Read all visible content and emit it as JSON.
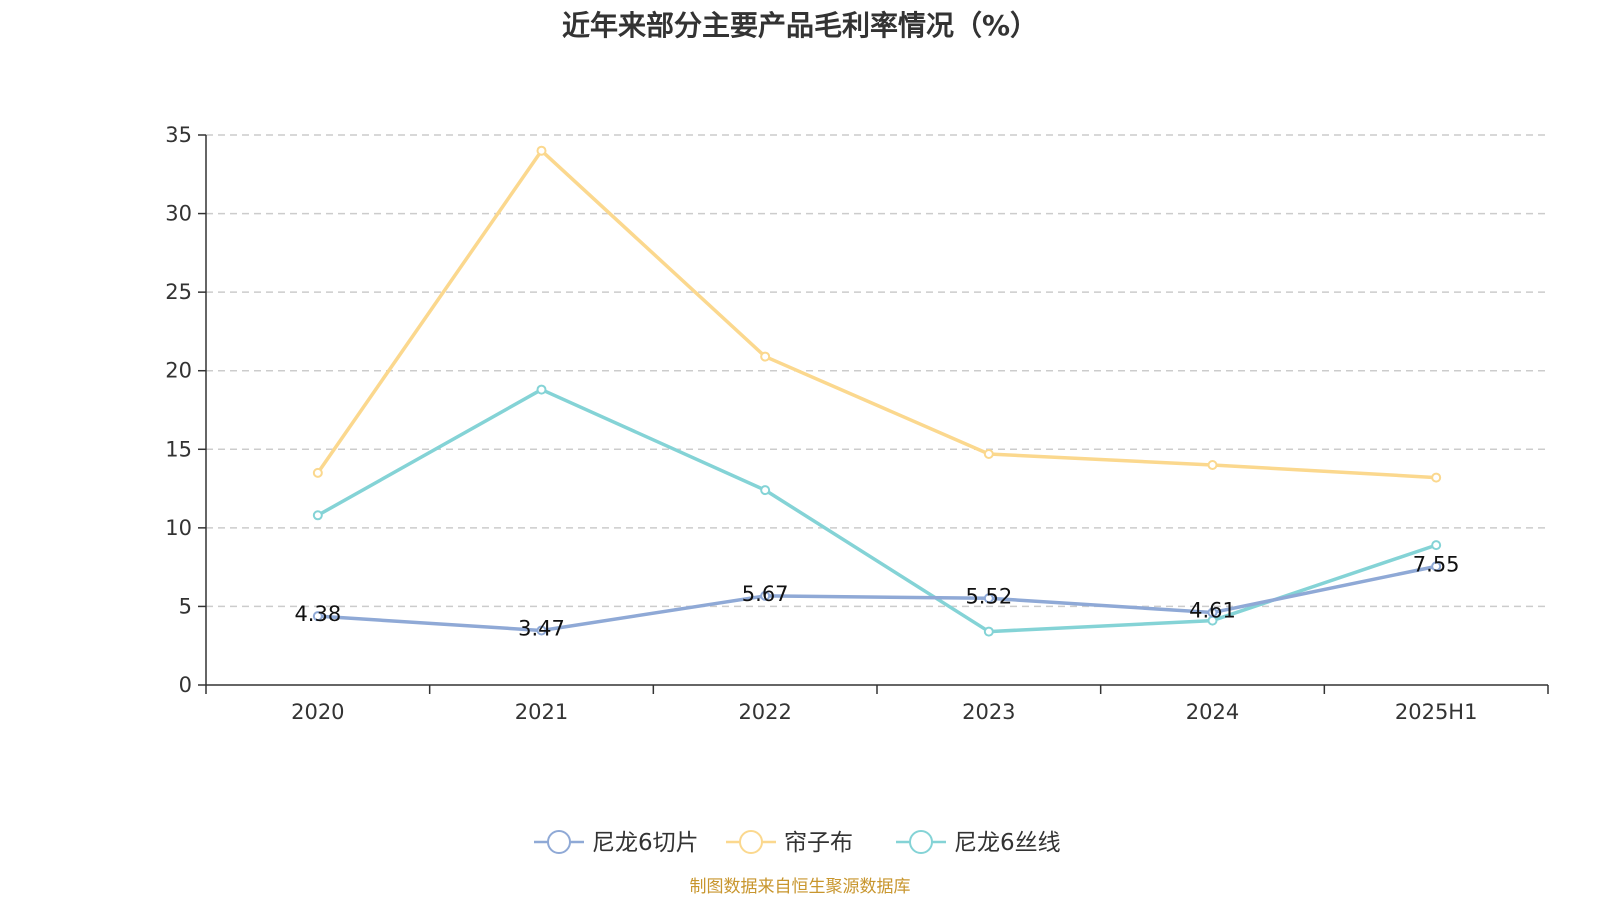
{
  "chart_data": {
    "type": "line",
    "title": "近年来部分主要产品毛利率情况（%）",
    "categories": [
      "2020",
      "2021",
      "2022",
      "2023",
      "2024",
      "2025H1"
    ],
    "ylim": [
      0,
      35
    ],
    "yticks": [
      0,
      5,
      10,
      15,
      20,
      25,
      30,
      35
    ],
    "grid": true,
    "legend_position": "bottom",
    "series": [
      {
        "name": "尼龙6切片",
        "color": "#8fa9d6",
        "values": [
          4.38,
          3.47,
          5.67,
          5.52,
          4.61,
          7.55
        ],
        "labels": [
          "4.38",
          "3.47",
          "5.67",
          "5.52",
          "4.61",
          "7.55"
        ]
      },
      {
        "name": "帘子布",
        "color": "#fbd88e",
        "values": [
          13.5,
          34.0,
          20.9,
          14.7,
          14.0,
          13.2
        ]
      },
      {
        "name": "尼龙6丝线",
        "color": "#84d3d6",
        "values": [
          10.8,
          18.8,
          12.4,
          3.4,
          4.1,
          8.9
        ]
      }
    ]
  },
  "source": "制图数据来自恒生聚源数据库"
}
